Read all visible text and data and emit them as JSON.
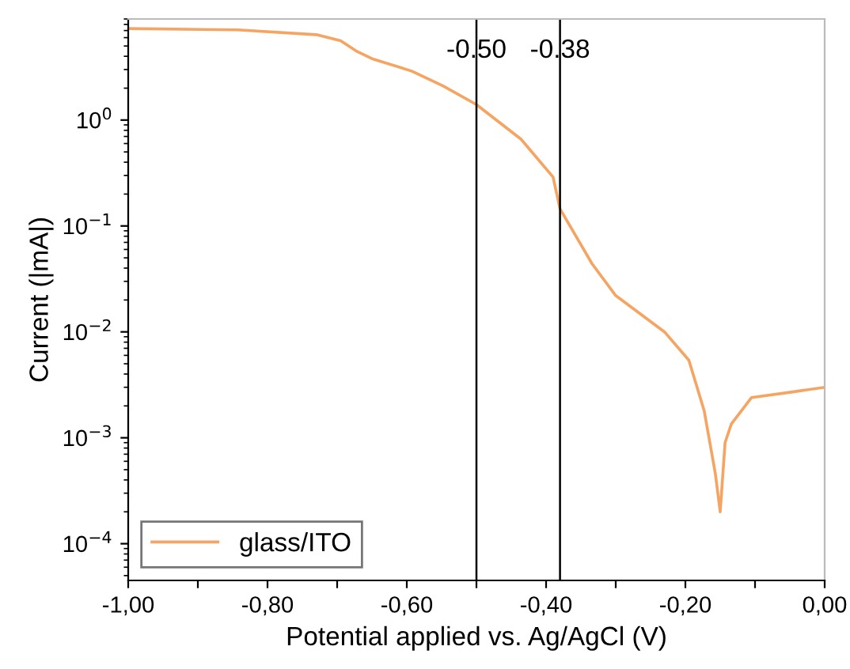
{
  "chart_data": {
    "type": "line",
    "xlabel": "Potential applied vs. Ag/AgCl (V)",
    "ylabel": "Current (|mA|)",
    "xlim": [
      -1.0,
      0.0
    ],
    "xticks": [
      {
        "value": -1.0,
        "label": "-1,00"
      },
      {
        "value": -0.9,
        "label": null
      },
      {
        "value": -0.8,
        "label": "-0,80"
      },
      {
        "value": -0.7,
        "label": null
      },
      {
        "value": -0.6,
        "label": "-0,60"
      },
      {
        "value": -0.5,
        "label": null
      },
      {
        "value": -0.4,
        "label": "-0,40"
      },
      {
        "value": -0.3,
        "label": null
      },
      {
        "value": -0.2,
        "label": "-0,20"
      },
      {
        "value": -0.1,
        "label": null
      },
      {
        "value": 0.0,
        "label": "0,00"
      }
    ],
    "ylim": [
      4.5e-05,
      9
    ],
    "log": "y",
    "yticks": [
      {
        "value": 0.0001,
        "label": "10$^{−4}$"
      },
      {
        "value": 0.001,
        "label": "10$^{−3}$"
      },
      {
        "value": 0.01,
        "label": "10$^{−2}$"
      },
      {
        "value": 0.1,
        "label": "10$^{−1}$"
      },
      {
        "value": 1,
        "label": "10$^{0}$"
      }
    ],
    "grid": false,
    "legend": "bottom left",
    "marker": "none",
    "line_style": "solid",
    "series": [
      {
        "name": "glass/ITO",
        "color": "#f5a462",
        "x": [
          -1.0,
          -0.843,
          -0.73,
          -0.695,
          -0.673,
          -0.65,
          -0.593,
          -0.548,
          -0.5,
          -0.436,
          -0.39,
          -0.38,
          -0.334,
          -0.3,
          -0.23,
          -0.195,
          -0.173,
          -0.157,
          -0.15,
          -0.143,
          -0.134,
          -0.105,
          -0.048,
          0.0
        ],
        "values": [
          7.3,
          7.1,
          6.4,
          5.6,
          4.5,
          3.8,
          2.9,
          2.1,
          1.4,
          0.66,
          0.29,
          0.145,
          0.044,
          0.022,
          0.01,
          0.0054,
          0.0018,
          0.00046,
          0.0002,
          0.0009,
          0.00135,
          0.0024,
          0.0027,
          0.003
        ]
      }
    ],
    "ref_lines": [
      {
        "axis": "x",
        "value": -0.5,
        "label": "-0.50",
        "color": "#000000"
      },
      {
        "axis": "x",
        "value": -0.38,
        "label": "-0.38",
        "color": "#000000"
      }
    ]
  }
}
